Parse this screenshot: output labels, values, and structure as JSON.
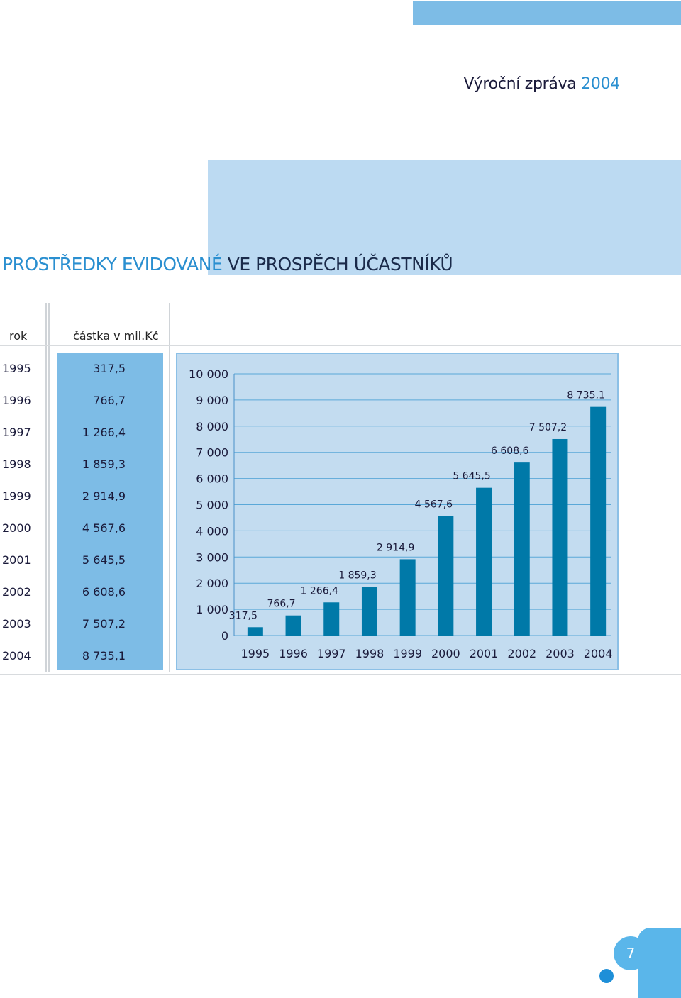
{
  "header": {
    "report_title": "Výroční zpráva",
    "report_year": "2004"
  },
  "section": {
    "title_light": "PROSTŘEDKY EVIDOVANÉ",
    "title_dark": "VE PROSPĚCH ÚČASTNÍKŮ"
  },
  "table": {
    "col_year": "rok",
    "col_amount": "částka v mil.Kč",
    "rows": [
      {
        "year": "1995",
        "amount": "317,5"
      },
      {
        "year": "1996",
        "amount": "766,7"
      },
      {
        "year": "1997",
        "amount": "1 266,4"
      },
      {
        "year": "1998",
        "amount": "1 859,3"
      },
      {
        "year": "1999",
        "amount": "2 914,9"
      },
      {
        "year": "2000",
        "amount": "4 567,6"
      },
      {
        "year": "2001",
        "amount": "5 645,5"
      },
      {
        "year": "2002",
        "amount": "6 608,6"
      },
      {
        "year": "2003",
        "amount": "7 507,2"
      },
      {
        "year": "2004",
        "amount": "8 735,1"
      }
    ]
  },
  "chart_data": {
    "type": "bar",
    "categories": [
      "1995",
      "1996",
      "1997",
      "1998",
      "1999",
      "2000",
      "2001",
      "2002",
      "2003",
      "2004"
    ],
    "values": [
      317.5,
      766.7,
      1266.4,
      1859.3,
      2914.9,
      4567.6,
      5645.5,
      6608.6,
      7507.2,
      8735.1
    ],
    "value_labels": [
      "317,5",
      "766,7",
      "1 266,4",
      "1 859,3",
      "2 914,9",
      "4 567,6",
      "5 645,5",
      "6 608,6",
      "7 507,2",
      "8 735,1"
    ],
    "y_ticks": [
      0,
      1000,
      2000,
      3000,
      4000,
      5000,
      6000,
      7000,
      8000,
      9000,
      10000
    ],
    "y_tick_labels": [
      "0",
      "1 000",
      "2 000",
      "3 000",
      "4 000",
      "5 000",
      "6 000",
      "7 000",
      "8 000",
      "9 000",
      "10 000"
    ],
    "ylim": [
      0,
      10000
    ],
    "grid": true,
    "title": "",
    "xlabel": "",
    "ylabel": "",
    "colors": {
      "bar": "#0079a8",
      "background": "#c3dcf0",
      "grid": "#5aa8d8"
    }
  },
  "footer": {
    "page_number": "7"
  }
}
